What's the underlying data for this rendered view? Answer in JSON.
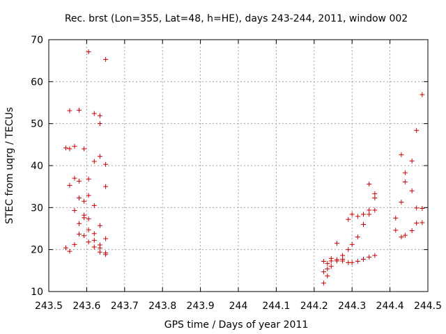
{
  "chart_data": {
    "type": "scatter",
    "title": "Rec. brst (Lon=355, Lat=48, h=HE), days 243-244, 2011, window 002",
    "xlabel": "GPS time / Days of year 2011",
    "ylabel": "STEC from uqrg / TECUs",
    "xlim": [
      243.5,
      244.5
    ],
    "ylim": [
      10,
      70
    ],
    "xticks": [
      243.5,
      243.6,
      243.7,
      243.8,
      243.9,
      244,
      244.1,
      244.2,
      244.3,
      244.4,
      244.5
    ],
    "xtick_labels": [
      "243.5",
      "243.6",
      "243.7",
      "243.8",
      "243.9",
      "244",
      "244.1",
      "244.2",
      "244.3",
      "244.4",
      "244.5"
    ],
    "yticks": [
      10,
      20,
      30,
      40,
      50,
      60,
      70
    ],
    "ytick_labels": [
      "10",
      "20",
      "30",
      "40",
      "50",
      "60",
      "70"
    ],
    "grid": true,
    "marker_color": "#cc0000",
    "marker": "plus",
    "series": [
      {
        "points": [
          [
            243.545,
            44.2
          ],
          [
            243.545,
            20.4
          ],
          [
            243.555,
            53.1
          ],
          [
            243.555,
            44.0
          ],
          [
            243.555,
            35.3
          ],
          [
            243.555,
            19.6
          ],
          [
            243.568,
            44.6
          ],
          [
            243.568,
            37.0
          ],
          [
            243.568,
            29.3
          ],
          [
            243.568,
            21.2
          ],
          [
            243.58,
            53.2
          ],
          [
            243.58,
            36.3
          ],
          [
            243.58,
            32.3
          ],
          [
            243.58,
            26.2
          ],
          [
            243.58,
            23.7
          ],
          [
            243.593,
            44.0
          ],
          [
            243.593,
            31.5
          ],
          [
            243.593,
            28.2
          ],
          [
            243.593,
            27.6
          ],
          [
            243.593,
            23.3
          ],
          [
            243.605,
            67.1
          ],
          [
            243.605,
            36.8
          ],
          [
            243.605,
            32.9
          ],
          [
            243.605,
            27.3
          ],
          [
            243.605,
            24.7
          ],
          [
            243.605,
            21.8
          ],
          [
            243.62,
            52.4
          ],
          [
            243.62,
            41.0
          ],
          [
            243.62,
            30.5
          ],
          [
            243.62,
            23.8
          ],
          [
            243.62,
            22.2
          ],
          [
            243.62,
            20.6
          ],
          [
            243.635,
            51.9
          ],
          [
            243.635,
            50.0
          ],
          [
            243.635,
            42.2
          ],
          [
            243.635,
            25.7
          ],
          [
            243.635,
            21.1
          ],
          [
            243.635,
            20.4
          ],
          [
            243.635,
            19.4
          ],
          [
            243.65,
            65.3
          ],
          [
            243.65,
            40.3
          ],
          [
            243.65,
            35.0
          ],
          [
            243.65,
            22.6
          ],
          [
            243.65,
            19.2
          ],
          [
            243.65,
            18.8
          ],
          [
            244.225,
            17.2
          ],
          [
            244.225,
            14.7
          ],
          [
            244.225,
            12.0
          ],
          [
            244.235,
            16.7
          ],
          [
            244.235,
            15.4
          ],
          [
            244.235,
            13.7
          ],
          [
            244.245,
            17.9
          ],
          [
            244.245,
            17.3
          ],
          [
            244.245,
            16.0
          ],
          [
            244.26,
            21.5
          ],
          [
            244.26,
            17.6
          ],
          [
            244.26,
            17.3
          ],
          [
            244.275,
            18.6
          ],
          [
            244.275,
            17.7
          ],
          [
            244.275,
            17.3
          ],
          [
            244.29,
            27.2
          ],
          [
            244.29,
            20.0
          ],
          [
            244.29,
            16.9
          ],
          [
            244.3,
            28.4
          ],
          [
            244.3,
            21.2
          ],
          [
            244.3,
            16.9
          ],
          [
            244.315,
            27.9
          ],
          [
            244.315,
            23.0
          ],
          [
            244.315,
            17.2
          ],
          [
            244.33,
            28.4
          ],
          [
            244.33,
            26.0
          ],
          [
            244.33,
            17.7
          ],
          [
            244.345,
            35.6
          ],
          [
            244.345,
            29.4
          ],
          [
            244.345,
            28.4
          ],
          [
            244.345,
            18.2
          ],
          [
            244.36,
            33.3
          ],
          [
            244.36,
            32.3
          ],
          [
            244.36,
            29.4
          ],
          [
            244.36,
            18.6
          ],
          [
            244.415,
            27.5
          ],
          [
            244.415,
            24.6
          ],
          [
            244.43,
            42.6
          ],
          [
            244.43,
            31.3
          ],
          [
            244.43,
            23.0
          ],
          [
            244.44,
            38.3
          ],
          [
            244.44,
            36.1
          ],
          [
            244.44,
            23.4
          ],
          [
            244.458,
            41.1
          ],
          [
            244.458,
            34.0
          ],
          [
            244.458,
            24.5
          ],
          [
            244.47,
            48.4
          ],
          [
            244.47,
            29.9
          ],
          [
            244.47,
            26.3
          ],
          [
            244.485,
            56.9
          ],
          [
            244.485,
            29.8
          ],
          [
            244.485,
            26.4
          ]
        ]
      }
    ]
  }
}
